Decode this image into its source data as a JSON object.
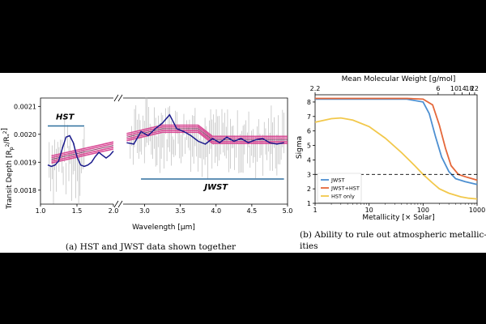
{
  "captions": {
    "a": "(a) HST and JWST data shown together",
    "b_line1": "(b) Ability to rule out atmospheric metallic-",
    "b_line2": "ities"
  },
  "chart_data": [
    {
      "type": "line",
      "panel": "a",
      "xlabel": "Wavelength [µm]",
      "ylabel": "Transit Depth [R_p^2/R_*^2]",
      "axis_break": "between 2.0 and ~2.9 µm",
      "hst_xlim": [
        1.0,
        2.0
      ],
      "jwst_xlim": [
        2.7,
        5.0
      ],
      "ylim": [
        0.00175,
        0.00213
      ],
      "hst_xticks": [
        "1.0",
        "1.5",
        "2.0"
      ],
      "jwst_xticks": [
        "3.0",
        "3.5",
        "4.0",
        "4.5",
        "5.0"
      ],
      "yticks": [
        "0.0018",
        "0.0019",
        "0.0020",
        "0.0021"
      ],
      "annotations": [
        {
          "label": "HST",
          "x_range": [
            1.1,
            1.6
          ],
          "y": 0.00203
        },
        {
          "label": "JWST",
          "x_range": [
            2.95,
            4.95
          ],
          "y": 0.00184
        }
      ],
      "colors": {
        "model": "#1a1a8c",
        "band": "#d63a8c",
        "data": "#b0b0b0",
        "marker": "#2e6f9e"
      },
      "series": [
        {
          "x": [
            1.1,
            1.15,
            1.2,
            1.25,
            1.3,
            1.35,
            1.4,
            1.45,
            1.5,
            1.55,
            1.6,
            1.65,
            1.7,
            1.75,
            1.8,
            1.85,
            1.9,
            1.95,
            2.0
          ],
          "y": [
            0.00189,
            0.001885,
            0.00189,
            0.001905,
            0.00195,
            0.00199,
            0.001995,
            0.00197,
            0.00192,
            0.00189,
            0.001885,
            0.00189,
            0.0019,
            0.00192,
            0.001935,
            0.001925,
            0.001915,
            0.001925,
            0.00194
          ]
        },
        {
          "x": [
            2.75,
            2.85,
            2.95,
            3.05,
            3.15,
            3.25,
            3.35,
            3.45,
            3.55,
            3.65,
            3.75,
            3.85,
            3.95,
            4.05,
            4.15,
            4.25,
            4.35,
            4.45,
            4.55,
            4.65,
            4.75,
            4.85,
            4.95
          ],
          "y": [
            0.00197,
            0.001965,
            0.00201,
            0.001995,
            0.00202,
            0.00204,
            0.00207,
            0.00202,
            0.00201,
            0.001995,
            0.001975,
            0.001965,
            0.001985,
            0.00197,
            0.00199,
            0.001975,
            0.001985,
            0.00197,
            0.00198,
            0.001985,
            0.00197,
            0.001965,
            0.00197
          ]
        }
      ],
      "bands": [
        {
          "x": [
            1.15,
            2.0
          ],
          "y": [
            0.00191,
            0.00196
          ]
        },
        {
          "x": [
            2.75,
            3.25,
            3.75,
            3.95,
            5.0
          ],
          "y": [
            0.00199,
            0.00202,
            0.00202,
            0.00198,
            0.00198
          ]
        }
      ]
    },
    {
      "type": "line",
      "panel": "b",
      "xlabel": "Metallicity [× Solar]",
      "ylabel": "Sigma",
      "top_xlabel": "Mean Molecular Weight [g/mol]",
      "xscale": "log",
      "xlim": [
        1,
        1000
      ],
      "ylim": [
        1,
        8.5
      ],
      "xtick_labels": [
        "1",
        "10",
        "100",
        "1000"
      ],
      "ytick_labels": [
        "1",
        "2",
        "3",
        "4",
        "5",
        "6",
        "7",
        "8"
      ],
      "top_ticks": [
        {
          "label": "2.2",
          "metallicity": 1
        },
        {
          "label": "6",
          "metallicity": 190
        },
        {
          "label": "10",
          "metallicity": 380
        },
        {
          "label": "14",
          "metallicity": 530
        },
        {
          "label": "18",
          "metallicity": 720
        },
        {
          "label": "22",
          "metallicity": 900
        }
      ],
      "threshold": 3,
      "legend_position": "lower-left",
      "series": [
        {
          "name": "JWST",
          "color": "#4d8fd1",
          "x": [
            1,
            10,
            50,
            100,
            130,
            170,
            220,
            300,
            400,
            600,
            1000
          ],
          "y": [
            8.2,
            8.2,
            8.2,
            8.0,
            7.2,
            5.6,
            4.2,
            3.2,
            2.7,
            2.5,
            2.3
          ]
        },
        {
          "name": "JWST+HST",
          "color": "#e5683a",
          "x": [
            1,
            10,
            50,
            100,
            150,
            200,
            260,
            330,
            450,
            650,
            1000
          ],
          "y": [
            8.25,
            8.25,
            8.25,
            8.2,
            7.8,
            6.4,
            4.8,
            3.6,
            3.0,
            2.8,
            2.6
          ]
        },
        {
          "name": "HST only",
          "color": "#f2c84b",
          "x": [
            1,
            2,
            3,
            5,
            10,
            20,
            40,
            70,
            100,
            150,
            200,
            300,
            500,
            700,
            1000
          ],
          "y": [
            6.6,
            6.85,
            6.9,
            6.75,
            6.3,
            5.5,
            4.5,
            3.6,
            3.0,
            2.4,
            2.0,
            1.7,
            1.45,
            1.35,
            1.3
          ]
        }
      ]
    }
  ]
}
